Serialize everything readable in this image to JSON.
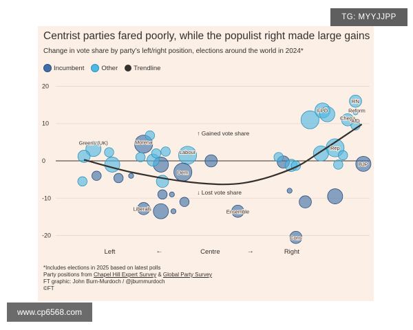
{
  "watermarks": {
    "top_right": "TG: MYYJJPP",
    "bottom_left": "www.cp6568.com"
  },
  "colors": {
    "incumbent": "#3e6fa8",
    "other": "#4db8e3",
    "trendline": "#33302e",
    "background": "#fcefe5"
  },
  "chart_data": {
    "type": "scatter",
    "title": "Centrist parties fared poorly, while the populist right made large gains",
    "subtitle": "Change in vote share by party’s left/right position, elections around the world in 2024*",
    "legend": [
      {
        "key": "incumbent",
        "label": "Incumbent"
      },
      {
        "key": "other",
        "label": "Other"
      },
      {
        "key": "trendline",
        "label": "Trendline"
      }
    ],
    "xlabel_positions": [
      "Left",
      "Centre",
      "Right"
    ],
    "x_arrows": [
      "←",
      "→"
    ],
    "xlim": [
      0,
      10
    ],
    "ylim": [
      -21,
      21
    ],
    "yticks": [
      20,
      10,
      0,
      -10,
      -20
    ],
    "zero_annotations": {
      "up": "↑ Gained vote share",
      "down": "↓ Lost vote share"
    },
    "trendline": [
      {
        "x": 0.9,
        "y": 0.3
      },
      {
        "x": 2.5,
        "y": -3.2
      },
      {
        "x": 4.5,
        "y": -5.9
      },
      {
        "x": 6.0,
        "y": -5.9
      },
      {
        "x": 7.5,
        "y": -2.2
      },
      {
        "x": 8.5,
        "y": 2.8
      },
      {
        "x": 9.75,
        "y": 9.8
      }
    ],
    "points": [
      {
        "x": 0.9,
        "y": 1.2,
        "size": 3,
        "type": "other",
        "label": ""
      },
      {
        "x": 1.2,
        "y": 3.2,
        "size": 4,
        "type": "other",
        "label": "Greens (UK)"
      },
      {
        "x": 0.85,
        "y": -5.5,
        "size": 2,
        "type": "other",
        "label": ""
      },
      {
        "x": 1.3,
        "y": -4.0,
        "size": 2,
        "type": "incumbent",
        "label": ""
      },
      {
        "x": 1.8,
        "y": -1.0,
        "size": 4,
        "type": "other",
        "label": ""
      },
      {
        "x": 1.7,
        "y": 2.3,
        "size": 2,
        "type": "other",
        "label": ""
      },
      {
        "x": 2.0,
        "y": -4.6,
        "size": 2,
        "type": "incumbent",
        "label": ""
      },
      {
        "x": 2.4,
        "y": -4.0,
        "size": 0.5,
        "type": "incumbent",
        "label": ""
      },
      {
        "x": 2.8,
        "y": 4.5,
        "size": 5,
        "type": "incumbent",
        "label": "Morena"
      },
      {
        "x": 3.0,
        "y": 6.8,
        "size": 2,
        "type": "other",
        "label": ""
      },
      {
        "x": 2.7,
        "y": 1.0,
        "size": 2,
        "type": "other",
        "label": ""
      },
      {
        "x": 3.1,
        "y": 0.2,
        "size": 3,
        "type": "other",
        "label": ""
      },
      {
        "x": 3.2,
        "y": 2.0,
        "size": 2,
        "type": "other",
        "label": ""
      },
      {
        "x": 3.5,
        "y": 2.5,
        "size": 2,
        "type": "other",
        "label": ""
      },
      {
        "x": 3.35,
        "y": -1.0,
        "size": 4,
        "type": "incumbent",
        "label": ""
      },
      {
        "x": 3.4,
        "y": -5.5,
        "size": 3,
        "type": "other",
        "label": ""
      },
      {
        "x": 3.4,
        "y": -9.0,
        "size": 2,
        "type": "incumbent",
        "label": ""
      },
      {
        "x": 3.7,
        "y": -9.0,
        "size": 0.5,
        "type": "incumbent",
        "label": ""
      },
      {
        "x": 2.8,
        "y": -12.8,
        "size": 3,
        "type": "incumbent",
        "label": "Liberals"
      },
      {
        "x": 3.35,
        "y": -13.5,
        "size": 4,
        "type": "incumbent",
        "label": ""
      },
      {
        "x": 3.75,
        "y": -13.5,
        "size": 0.5,
        "type": "incumbent",
        "label": ""
      },
      {
        "x": 4.2,
        "y": 1.5,
        "size": 5,
        "type": "other",
        "label": "Labour"
      },
      {
        "x": 4.05,
        "y": -3.0,
        "size": 5,
        "type": "incumbent",
        "label": "Dem"
      },
      {
        "x": 4.1,
        "y": -11.0,
        "size": 2,
        "type": "incumbent",
        "label": ""
      },
      {
        "x": 4.95,
        "y": 0.0,
        "size": 3,
        "type": "incumbent",
        "label": ""
      },
      {
        "x": 5.8,
        "y": -13.5,
        "size": 3,
        "type": "incumbent",
        "label": "Ensemble"
      },
      {
        "x": 7.1,
        "y": 1.0,
        "size": 2,
        "type": "other",
        "label": ""
      },
      {
        "x": 7.25,
        "y": -0.3,
        "size": 3,
        "type": "incumbent",
        "label": ""
      },
      {
        "x": 7.5,
        "y": -1.2,
        "size": 3,
        "type": "other",
        "label": ""
      },
      {
        "x": 7.65,
        "y": -1.3,
        "size": 2,
        "type": "other",
        "label": ""
      },
      {
        "x": 7.45,
        "y": -8.0,
        "size": 0.5,
        "type": "incumbent",
        "label": ""
      },
      {
        "x": 7.95,
        "y": -11.0,
        "size": 3,
        "type": "incumbent",
        "label": ""
      },
      {
        "x": 7.65,
        "y": -20.5,
        "size": 3,
        "type": "incumbent",
        "label": "Cons"
      },
      {
        "x": 8.1,
        "y": 11.0,
        "size": 5,
        "type": "other",
        "label": ""
      },
      {
        "x": 8.5,
        "y": 13.5,
        "size": 4,
        "type": "other",
        "label": "FPÖ"
      },
      {
        "x": 8.65,
        "y": 12.5,
        "size": 4,
        "type": "other",
        "label": ""
      },
      {
        "x": 8.45,
        "y": 2.0,
        "size": 4,
        "type": "other",
        "label": ""
      },
      {
        "x": 8.9,
        "y": 3.5,
        "size": 5,
        "type": "other",
        "label": "Rep"
      },
      {
        "x": 9.0,
        "y": -1.0,
        "size": 2,
        "type": "other",
        "label": ""
      },
      {
        "x": 9.15,
        "y": 1.5,
        "size": 2,
        "type": "other",
        "label": ""
      },
      {
        "x": 9.3,
        "y": 11.0,
        "size": 3,
        "type": "other",
        "label": "Chega"
      },
      {
        "x": 9.55,
        "y": 16.0,
        "size": 3,
        "type": "other",
        "label": "RN"
      },
      {
        "x": 9.55,
        "y": 13.0,
        "size": 0.5,
        "type": "other",
        "label": "Reform"
      },
      {
        "x": 9.55,
        "y": 9.5,
        "size": 2,
        "type": "other",
        "label": "AfD"
      },
      {
        "x": 8.9,
        "y": -9.5,
        "size": 4,
        "type": "incumbent",
        "label": ""
      },
      {
        "x": 9.8,
        "y": -0.8,
        "size": 4,
        "type": "incumbent",
        "label": "BJP"
      }
    ]
  },
  "footer": {
    "note": "*Includes elections in 2025 based on latest polls",
    "positions_prefix": "Party positions from",
    "source1": "Chapel Hill Expert Survey",
    "amp": "&",
    "source2": "Global Party Survey",
    "credit": "FT graphic: John Burn-Murdoch / @jburnmurdoch",
    "copyright": "©FT"
  }
}
